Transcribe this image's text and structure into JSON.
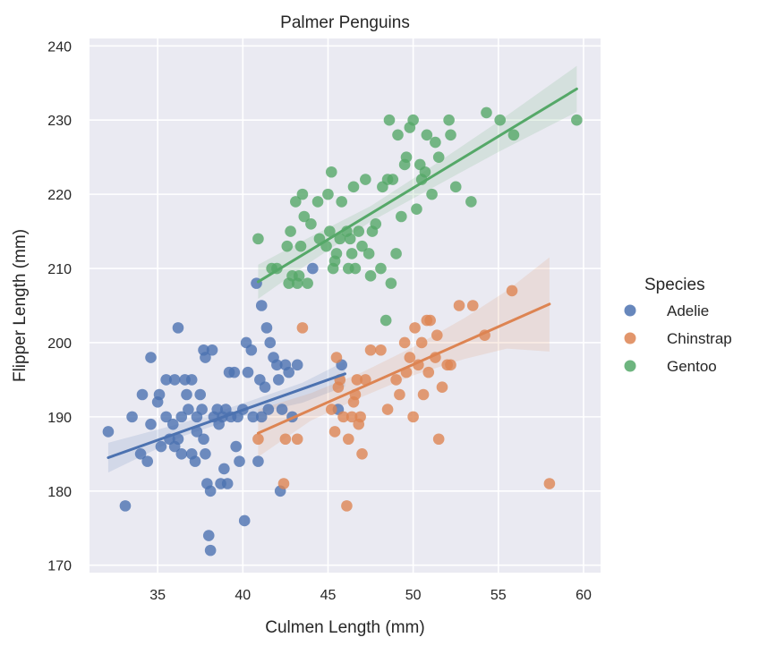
{
  "chart_data": {
    "type": "scatter",
    "title": "Palmer Penguins",
    "xlabel": "Culmen Length (mm)",
    "ylabel": "Flipper Length (mm)",
    "xlim": [
      31,
      61
    ],
    "ylim": [
      169,
      241
    ],
    "xticks": [
      35,
      40,
      45,
      50,
      55,
      60
    ],
    "yticks": [
      170,
      180,
      190,
      200,
      210,
      220,
      230,
      240
    ],
    "grid": true,
    "legend": {
      "title": "Species",
      "placement": "right"
    },
    "series": [
      {
        "name": "Adelie",
        "color": "#4c72b0",
        "regression": {
          "x": [
            32.1,
            46.0
          ],
          "y": [
            184.5,
            195.8
          ]
        },
        "ci_upper": [
          [
            32.1,
            186.5
          ],
          [
            36.5,
            189.2
          ],
          [
            40.0,
            191.8
          ],
          [
            43.5,
            194.6
          ],
          [
            46.0,
            197.5
          ]
        ],
        "ci_lower": [
          [
            32.1,
            182.5
          ],
          [
            36.5,
            187.4
          ],
          [
            40.0,
            190.1
          ],
          [
            43.5,
            191.9
          ],
          [
            46.0,
            194.1
          ]
        ],
        "points": [
          [
            32.1,
            188
          ],
          [
            33.1,
            178
          ],
          [
            33.5,
            190
          ],
          [
            34.0,
            185
          ],
          [
            34.1,
            193
          ],
          [
            34.4,
            184
          ],
          [
            34.6,
            198
          ],
          [
            34.6,
            189
          ],
          [
            35.0,
            192
          ],
          [
            35.1,
            193
          ],
          [
            35.2,
            186
          ],
          [
            35.5,
            195
          ],
          [
            35.5,
            190
          ],
          [
            35.7,
            187
          ],
          [
            35.9,
            189
          ],
          [
            36.0,
            195
          ],
          [
            36.0,
            186
          ],
          [
            36.2,
            202
          ],
          [
            36.2,
            187
          ],
          [
            36.4,
            190
          ],
          [
            36.4,
            185
          ],
          [
            36.6,
            195
          ],
          [
            36.7,
            193
          ],
          [
            36.8,
            191
          ],
          [
            37.0,
            195
          ],
          [
            37.0,
            185
          ],
          [
            37.2,
            184
          ],
          [
            37.3,
            190
          ],
          [
            37.3,
            188
          ],
          [
            37.5,
            193
          ],
          [
            37.6,
            191
          ],
          [
            37.7,
            199
          ],
          [
            37.7,
            187
          ],
          [
            37.8,
            198
          ],
          [
            37.8,
            185
          ],
          [
            37.9,
            181
          ],
          [
            38.0,
            174
          ],
          [
            38.1,
            172
          ],
          [
            38.1,
            180
          ],
          [
            38.2,
            199
          ],
          [
            38.3,
            190
          ],
          [
            38.5,
            191
          ],
          [
            38.6,
            189
          ],
          [
            38.7,
            181
          ],
          [
            38.8,
            190
          ],
          [
            38.9,
            183
          ],
          [
            39.0,
            191
          ],
          [
            39.1,
            181
          ],
          [
            39.2,
            196
          ],
          [
            39.3,
            190
          ],
          [
            39.5,
            196
          ],
          [
            39.6,
            186
          ],
          [
            39.7,
            190
          ],
          [
            39.8,
            184
          ],
          [
            40.0,
            191
          ],
          [
            40.1,
            176
          ],
          [
            40.2,
            200
          ],
          [
            40.3,
            196
          ],
          [
            40.5,
            199
          ],
          [
            40.6,
            190
          ],
          [
            40.8,
            208
          ],
          [
            40.9,
            184
          ],
          [
            41.0,
            195
          ],
          [
            41.1,
            205
          ],
          [
            41.1,
            190
          ],
          [
            41.3,
            194
          ],
          [
            41.4,
            202
          ],
          [
            41.5,
            191
          ],
          [
            41.6,
            200
          ],
          [
            41.8,
            198
          ],
          [
            42.0,
            197
          ],
          [
            42.1,
            195
          ],
          [
            42.2,
            180
          ],
          [
            42.3,
            191
          ],
          [
            42.5,
            197
          ],
          [
            42.7,
            196
          ],
          [
            42.9,
            190
          ],
          [
            43.2,
            197
          ],
          [
            44.1,
            210
          ],
          [
            45.6,
            191
          ],
          [
            45.8,
            197
          ]
        ]
      },
      {
        "name": "Chinstrap",
        "color": "#dd8452",
        "regression": {
          "x": [
            40.9,
            58.0
          ],
          "y": [
            187.8,
            205.2
          ]
        },
        "ci_upper": [
          [
            40.9,
            191.0
          ],
          [
            44.0,
            193.2
          ],
          [
            47.0,
            196.0
          ],
          [
            50.0,
            199.4
          ],
          [
            53.0,
            203.3
          ],
          [
            55.5,
            207.0
          ],
          [
            58.0,
            211.5
          ]
        ],
        "ci_lower": [
          [
            40.9,
            184.6
          ],
          [
            44.0,
            189.5
          ],
          [
            47.0,
            192.7
          ],
          [
            50.0,
            195.6
          ],
          [
            53.0,
            197.8
          ],
          [
            55.5,
            199.2
          ],
          [
            58.0,
            198.8
          ]
        ],
        "points": [
          [
            40.9,
            187
          ],
          [
            42.4,
            181
          ],
          [
            42.5,
            187
          ],
          [
            43.2,
            187
          ],
          [
            43.5,
            202
          ],
          [
            45.2,
            191
          ],
          [
            45.4,
            188
          ],
          [
            45.5,
            198
          ],
          [
            45.6,
            194
          ],
          [
            45.7,
            195
          ],
          [
            45.9,
            190
          ],
          [
            46.1,
            178
          ],
          [
            46.2,
            187
          ],
          [
            46.4,
            190
          ],
          [
            46.5,
            192
          ],
          [
            46.6,
            193
          ],
          [
            46.7,
            195
          ],
          [
            46.8,
            189
          ],
          [
            46.9,
            190
          ],
          [
            47.0,
            185
          ],
          [
            47.2,
            195
          ],
          [
            47.5,
            199
          ],
          [
            48.1,
            199
          ],
          [
            48.5,
            191
          ],
          [
            49.0,
            195
          ],
          [
            49.2,
            193
          ],
          [
            49.5,
            200
          ],
          [
            49.6,
            196
          ],
          [
            49.8,
            198
          ],
          [
            50.0,
            190
          ],
          [
            50.1,
            202
          ],
          [
            50.3,
            197
          ],
          [
            50.5,
            200
          ],
          [
            50.6,
            193
          ],
          [
            50.8,
            203
          ],
          [
            50.9,
            196
          ],
          [
            51.0,
            203
          ],
          [
            51.3,
            198
          ],
          [
            51.4,
            201
          ],
          [
            51.5,
            187
          ],
          [
            51.7,
            194
          ],
          [
            52.0,
            197
          ],
          [
            52.2,
            197
          ],
          [
            52.7,
            205
          ],
          [
            53.5,
            205
          ],
          [
            54.2,
            201
          ],
          [
            55.8,
            207
          ],
          [
            58.0,
            181
          ]
        ]
      },
      {
        "name": "Gentoo",
        "color": "#55a868",
        "regression": {
          "x": [
            40.9,
            59.6
          ],
          "y": [
            208.2,
            234.2
          ]
        },
        "ci_upper": [
          [
            40.9,
            210.5
          ],
          [
            44.0,
            214.3
          ],
          [
            47.5,
            218.4
          ],
          [
            51.0,
            223.6
          ],
          [
            55.0,
            229.8
          ],
          [
            59.6,
            237.3
          ]
        ],
        "ci_lower": [
          [
            40.9,
            205.9
          ],
          [
            44.0,
            210.9
          ],
          [
            47.5,
            216.3
          ],
          [
            51.0,
            220.7
          ],
          [
            55.0,
            225.7
          ],
          [
            59.6,
            231.1
          ]
        ],
        "points": [
          [
            40.9,
            214
          ],
          [
            41.7,
            210
          ],
          [
            42.0,
            210
          ],
          [
            42.6,
            213
          ],
          [
            42.7,
            208
          ],
          [
            42.8,
            215
          ],
          [
            42.9,
            209
          ],
          [
            43.1,
            219
          ],
          [
            43.2,
            208
          ],
          [
            43.3,
            209
          ],
          [
            43.4,
            213
          ],
          [
            43.5,
            220
          ],
          [
            43.6,
            217
          ],
          [
            43.8,
            208
          ],
          [
            44.0,
            216
          ],
          [
            44.4,
            219
          ],
          [
            44.5,
            214
          ],
          [
            44.9,
            213
          ],
          [
            45.0,
            220
          ],
          [
            45.1,
            215
          ],
          [
            45.2,
            223
          ],
          [
            45.3,
            210
          ],
          [
            45.4,
            211
          ],
          [
            45.5,
            212
          ],
          [
            45.7,
            214
          ],
          [
            45.8,
            219
          ],
          [
            46.1,
            215
          ],
          [
            46.2,
            210
          ],
          [
            46.3,
            214
          ],
          [
            46.4,
            212
          ],
          [
            46.5,
            221
          ],
          [
            46.6,
            210
          ],
          [
            46.8,
            215
          ],
          [
            47.0,
            213
          ],
          [
            47.2,
            222
          ],
          [
            47.4,
            212
          ],
          [
            47.5,
            209
          ],
          [
            47.6,
            215
          ],
          [
            47.8,
            216
          ],
          [
            48.1,
            210
          ],
          [
            48.2,
            221
          ],
          [
            48.4,
            203
          ],
          [
            48.5,
            222
          ],
          [
            48.6,
            230
          ],
          [
            48.7,
            208
          ],
          [
            48.8,
            222
          ],
          [
            49.0,
            212
          ],
          [
            49.1,
            228
          ],
          [
            49.3,
            217
          ],
          [
            49.5,
            224
          ],
          [
            49.6,
            225
          ],
          [
            49.8,
            229
          ],
          [
            50.0,
            230
          ],
          [
            50.2,
            218
          ],
          [
            50.4,
            224
          ],
          [
            50.5,
            222
          ],
          [
            50.7,
            223
          ],
          [
            50.8,
            228
          ],
          [
            51.1,
            220
          ],
          [
            51.3,
            227
          ],
          [
            51.5,
            225
          ],
          [
            52.1,
            230
          ],
          [
            52.2,
            228
          ],
          [
            52.5,
            221
          ],
          [
            53.4,
            219
          ],
          [
            54.3,
            231
          ],
          [
            55.1,
            230
          ],
          [
            55.9,
            228
          ],
          [
            59.6,
            230
          ]
        ]
      }
    ]
  }
}
